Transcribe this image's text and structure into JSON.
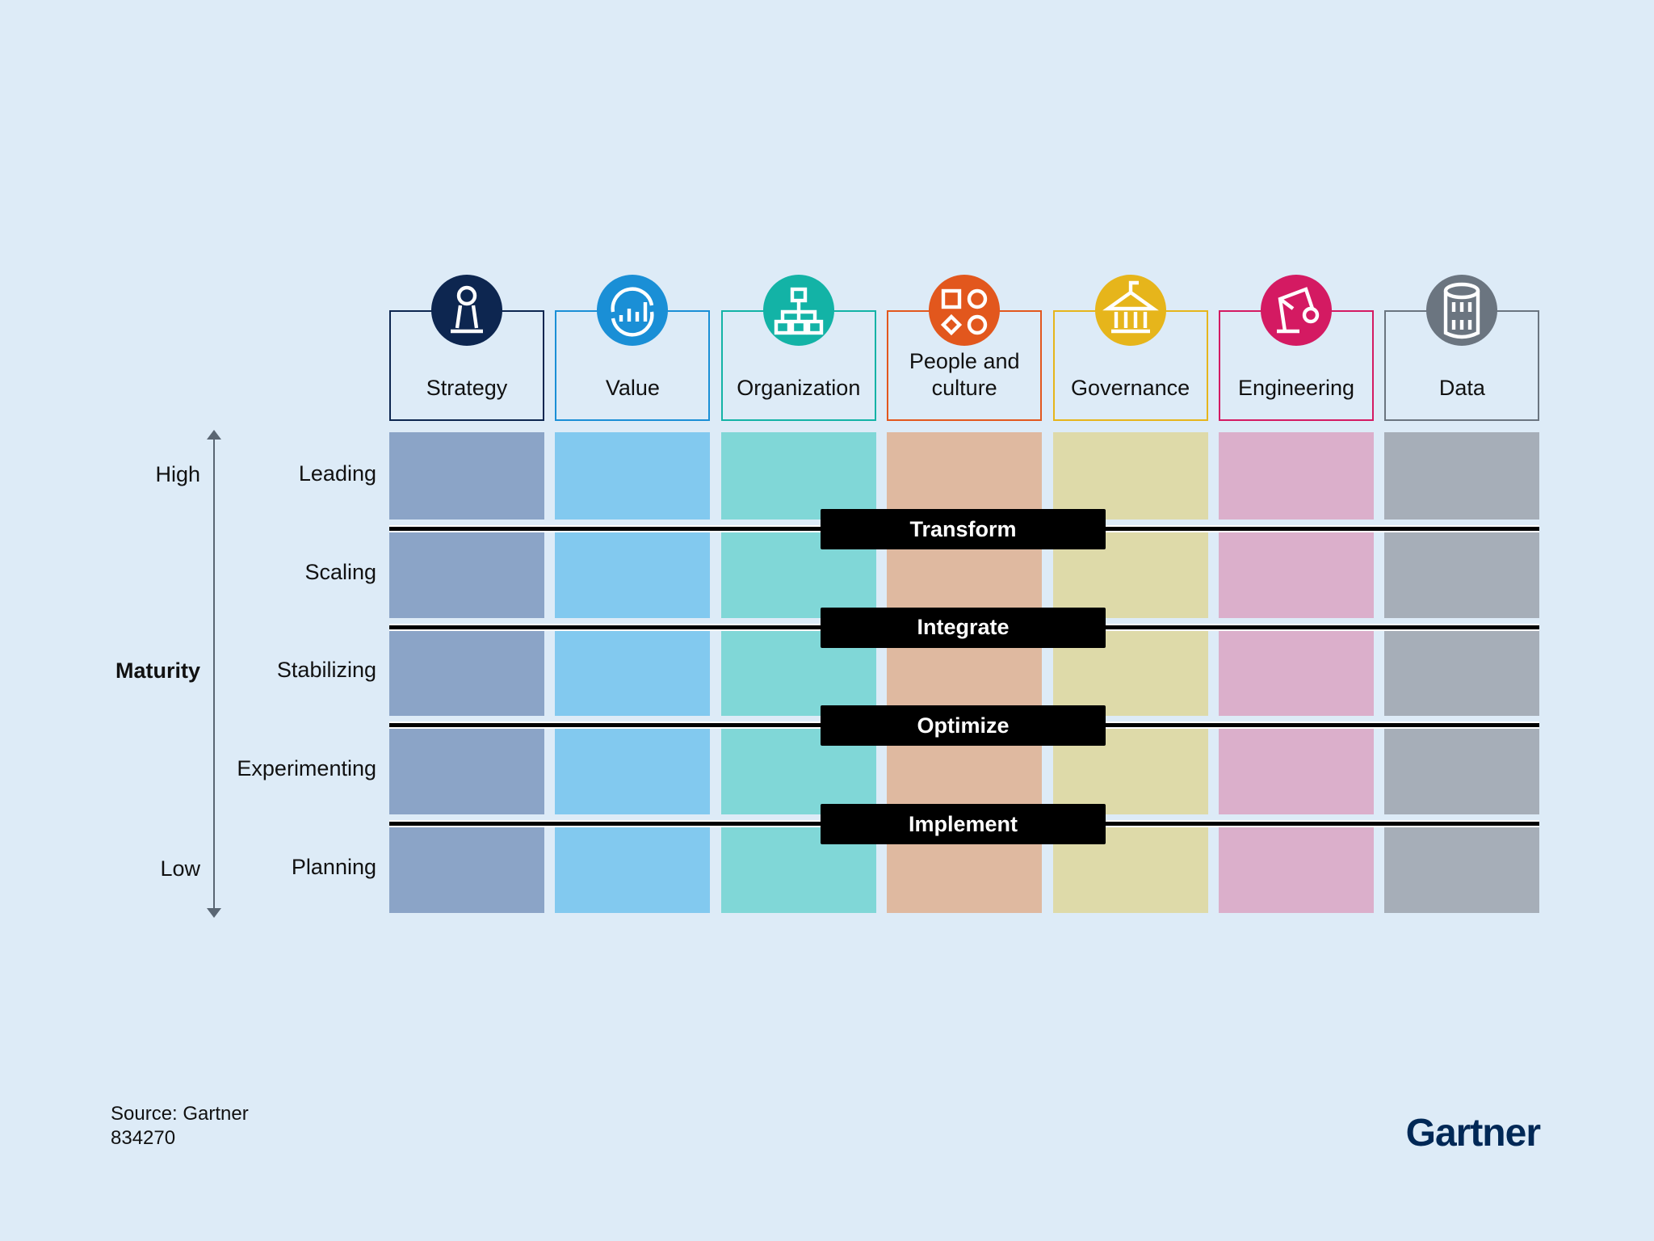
{
  "axis": {
    "high": "High",
    "title": "Maturity",
    "low": "Low"
  },
  "columns": [
    {
      "label": "Strategy",
      "color": "#0d2650",
      "fill": "#8ba4c7"
    },
    {
      "label": "Value",
      "color": "#1a8fd6",
      "fill": "#82c9ef"
    },
    {
      "label": "Organization",
      "color": "#13b3a6",
      "fill": "#80d7d7"
    },
    {
      "label": "People and culture",
      "color": "#e2571d",
      "fill": "#dfb9a0"
    },
    {
      "label": "Governance",
      "color": "#e6b51b",
      "fill": "#dedaa9"
    },
    {
      "label": "Engineering",
      "color": "#d41a62",
      "fill": "#dbafcb"
    },
    {
      "label": "Data",
      "color": "#6b7580",
      "fill": "#a6aeb8"
    }
  ],
  "rows": [
    "Leading",
    "Scaling",
    "Stabilizing",
    "Experimenting",
    "Planning"
  ],
  "stages": [
    "Transform",
    "Integrate",
    "Optimize",
    "Implement"
  ],
  "footer": {
    "source": "Source: Gartner",
    "id": "834270",
    "logo": "Gartner"
  }
}
